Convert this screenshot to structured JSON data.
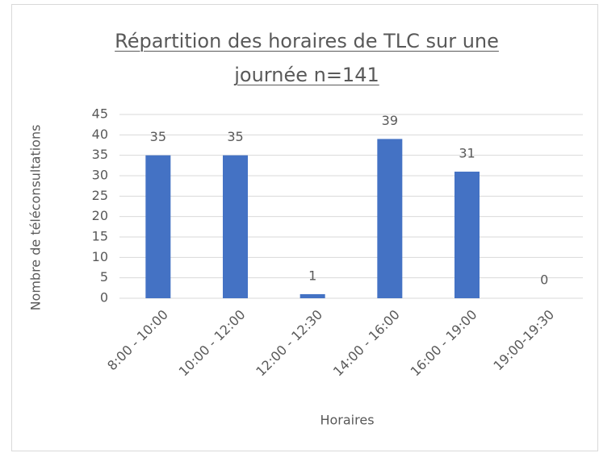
{
  "chart_data": {
    "type": "bar",
    "title": "Répartition des horaires de TLC sur une journée  n=141",
    "x_label": "Horaires",
    "y_label": "Nombre de téléconsultations",
    "categories": [
      "8:00 - 10:00",
      "10:00 - 12:00",
      "12:00 - 12:30",
      "14:00 - 16:00",
      "16:00 - 19:00",
      "19:00-19:30"
    ],
    "values": [
      35,
      35,
      1,
      39,
      31,
      0
    ],
    "color": "#4472c4",
    "ylim": [
      0,
      45
    ],
    "yticks": [
      0,
      5,
      10,
      15,
      20,
      25,
      30,
      35,
      40,
      45
    ],
    "grid": true
  }
}
